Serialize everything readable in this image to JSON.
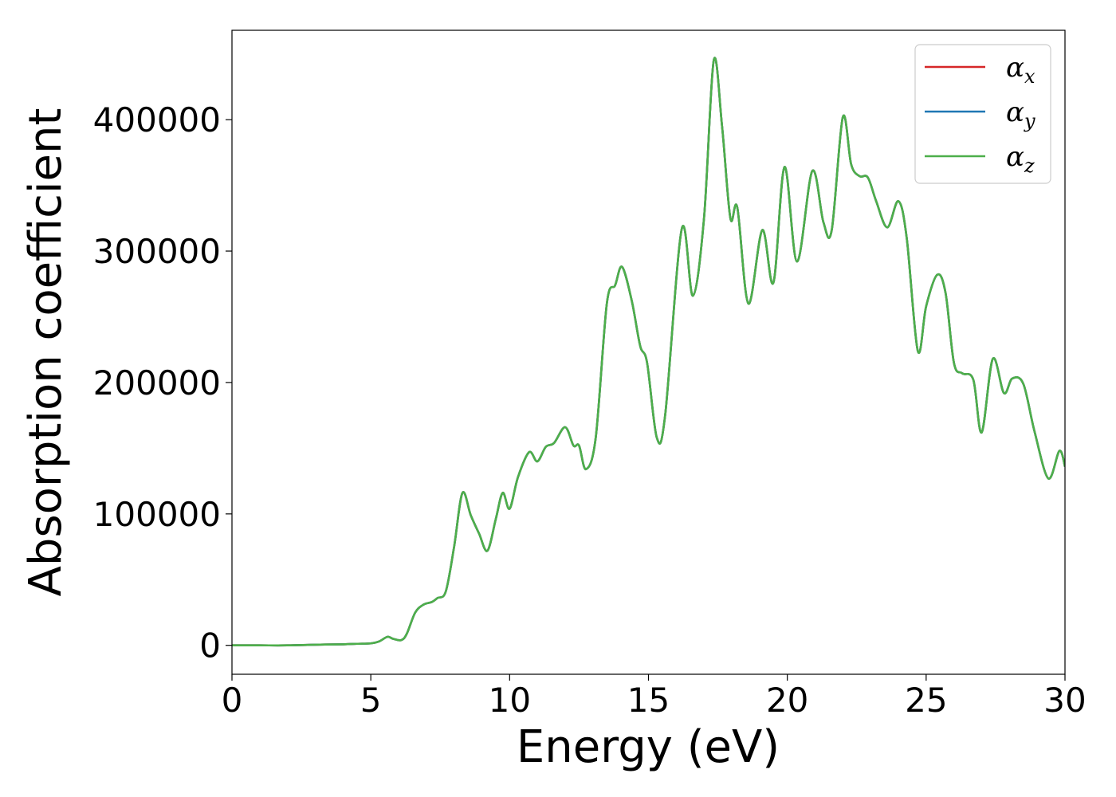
{
  "chart_data": {
    "type": "line",
    "title": "",
    "xlabel": "Energy (eV)",
    "ylabel": "Absorption coefficient",
    "xlim": [
      0,
      30
    ],
    "ylim": [
      -22000,
      468000
    ],
    "xticks": [
      0,
      5,
      10,
      15,
      20,
      25,
      30
    ],
    "yticks": [
      0,
      100000,
      200000,
      300000,
      400000
    ],
    "grid": false,
    "legend_position": "top-right",
    "legend": [
      {
        "symbol": "α",
        "subscript": "x",
        "color": "#d62728"
      },
      {
        "symbol": "α",
        "subscript": "y",
        "color": "#1f77b4"
      },
      {
        "symbol": "α",
        "subscript": "z",
        "color": "#4daf4a"
      }
    ],
    "x": [
      0,
      1,
      2,
      3,
      4,
      4.5,
      5,
      5.3,
      5.6,
      5.8,
      6.1,
      6.3,
      6.6,
      6.9,
      7.2,
      7.4,
      7.7,
      8.0,
      8.3,
      8.6,
      8.9,
      9.2,
      9.5,
      9.75,
      10.0,
      10.3,
      10.7,
      11.0,
      11.3,
      11.6,
      12.0,
      12.3,
      12.5,
      12.75,
      13.1,
      13.5,
      13.8,
      14.05,
      14.4,
      14.7,
      14.95,
      15.3,
      15.6,
      16.2,
      16.6,
      17.0,
      17.35,
      17.65,
      17.95,
      18.2,
      18.6,
      19.1,
      19.5,
      19.9,
      20.35,
      20.9,
      21.3,
      21.6,
      22.0,
      22.3,
      22.6,
      22.9,
      23.2,
      23.6,
      24.0,
      24.3,
      24.7,
      25.0,
      25.4,
      25.7,
      26.0,
      26.3,
      26.7,
      27.0,
      27.4,
      27.8,
      28.1,
      28.5,
      28.9,
      29.4,
      29.8,
      30.0
    ],
    "series": [
      {
        "color": "#d62728",
        "values": [
          0,
          0,
          0,
          500,
          800,
          1200,
          1500,
          3000,
          6500,
          5000,
          4000,
          9000,
          25000,
          31000,
          33000,
          36000,
          41000,
          75000,
          116000,
          99000,
          85000,
          72000,
          96000,
          116000,
          104000,
          128000,
          147000,
          140000,
          151000,
          154000,
          166000,
          152000,
          152000,
          134000,
          158000,
          260000,
          274000,
          288000,
          262000,
          228000,
          215000,
          158000,
          175000,
          317000,
          266000,
          325000,
          445000,
          395000,
          325000,
          333000,
          260000,
          316000,
          276000,
          364000,
          292000,
          361000,
          322000,
          316000,
          402000,
          366000,
          357000,
          356000,
          338000,
          318000,
          338000,
          310000,
          224000,
          258000,
          282000,
          268000,
          215000,
          207000,
          202000,
          162000,
          218000,
          192000,
          203000,
          199000,
          163000,
          127000,
          148000,
          136000
        ]
      },
      {
        "color": "#1f77b4",
        "values": [
          0,
          0,
          0,
          500,
          800,
          1200,
          1500,
          3000,
          6500,
          5000,
          4000,
          9000,
          25000,
          31000,
          33000,
          36000,
          41000,
          75000,
          116000,
          99000,
          85000,
          72000,
          96000,
          116000,
          104000,
          128000,
          147000,
          140000,
          151000,
          154000,
          166000,
          152000,
          152000,
          134000,
          158000,
          260000,
          274000,
          288000,
          262000,
          228000,
          215000,
          158000,
          175000,
          317000,
          266000,
          325000,
          445000,
          395000,
          325000,
          333000,
          260000,
          316000,
          276000,
          364000,
          292000,
          361000,
          322000,
          316000,
          402000,
          366000,
          357000,
          356000,
          338000,
          318000,
          338000,
          310000,
          224000,
          258000,
          282000,
          268000,
          215000,
          207000,
          202000,
          162000,
          218000,
          192000,
          203000,
          199000,
          163000,
          127000,
          148000,
          136000
        ]
      },
      {
        "color": "#4daf4a",
        "values": [
          0,
          0,
          0,
          500,
          800,
          1200,
          1500,
          3000,
          6500,
          5000,
          4000,
          9000,
          25000,
          31000,
          33000,
          36000,
          41000,
          75000,
          116000,
          99000,
          85000,
          72000,
          96000,
          116000,
          104000,
          128000,
          147000,
          140000,
          151000,
          154000,
          166000,
          152000,
          152000,
          134000,
          158000,
          260000,
          274000,
          288000,
          262000,
          228000,
          215000,
          158000,
          175000,
          317000,
          266000,
          325000,
          445000,
          395000,
          325000,
          333000,
          260000,
          316000,
          276000,
          364000,
          292000,
          361000,
          322000,
          316000,
          402000,
          366000,
          357000,
          356000,
          338000,
          318000,
          338000,
          310000,
          224000,
          258000,
          282000,
          268000,
          215000,
          207000,
          202000,
          162000,
          218000,
          192000,
          203000,
          199000,
          163000,
          127000,
          148000,
          136000
        ]
      }
    ]
  }
}
